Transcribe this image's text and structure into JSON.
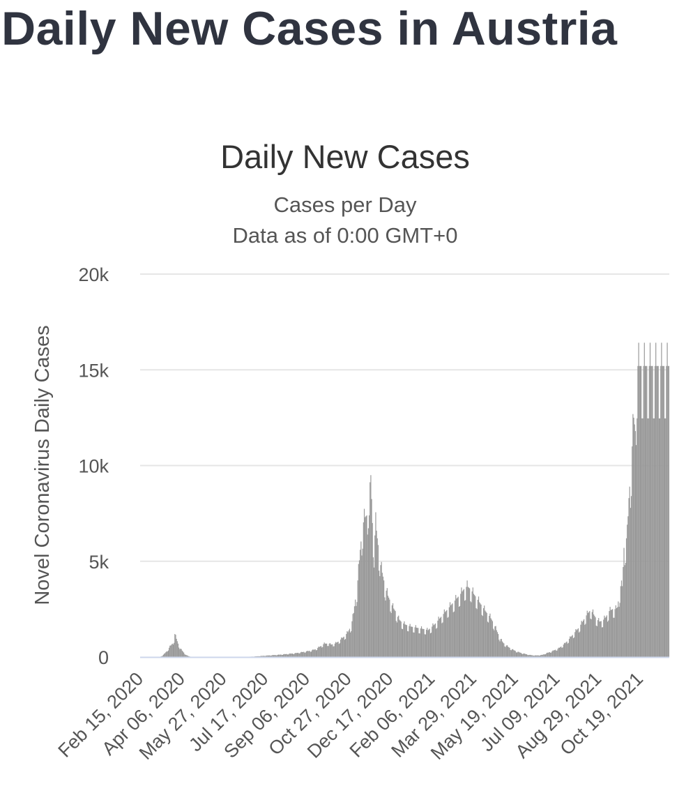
{
  "page": {
    "title": "Daily New Cases in Austria"
  },
  "colors": {
    "bar": "#999999",
    "grid": "#e6e6e6",
    "baseline": "#ccd6eb"
  },
  "chart_data": {
    "type": "bar",
    "title": "Daily New Cases",
    "subtitle_lines": [
      "Cases per Day",
      "Data as of 0:00 GMT+0"
    ],
    "ylabel": "Novel Coronavirus Daily Cases",
    "xlabel": "",
    "ylim": [
      0,
      20000
    ],
    "y_ticks": [
      {
        "value": 0,
        "label": "0"
      },
      {
        "value": 5000,
        "label": "5k"
      },
      {
        "value": 10000,
        "label": "10k"
      },
      {
        "value": 15000,
        "label": "15k"
      },
      {
        "value": 20000,
        "label": "20k"
      }
    ],
    "x_start": "2020-02-15",
    "x_end": "2021-11-23",
    "x_tick_labels": [
      {
        "day": 0,
        "label": "Feb 15, 2020"
      },
      {
        "day": 51,
        "label": "Apr 06, 2020"
      },
      {
        "day": 102,
        "label": "May 27, 2020"
      },
      {
        "day": 153,
        "label": "Jul 17, 2020"
      },
      {
        "day": 204,
        "label": "Sep 06, 2020"
      },
      {
        "day": 255,
        "label": "Oct 27, 2020"
      },
      {
        "day": 306,
        "label": "Dec 17, 2020"
      },
      {
        "day": 357,
        "label": "Feb 06, 2021"
      },
      {
        "day": 408,
        "label": "Mar 29, 2021"
      },
      {
        "day": 459,
        "label": "May 19, 2021"
      },
      {
        "day": 510,
        "label": "Jul 09, 2021"
      },
      {
        "day": 561,
        "label": "Aug 29, 2021"
      },
      {
        "day": 612,
        "label": "Oct 19, 2021"
      }
    ],
    "series": [
      {
        "name": "Daily Cases",
        "anchor_points": [
          [
            0,
            0
          ],
          [
            24,
            0
          ],
          [
            27,
            80
          ],
          [
            30,
            200
          ],
          [
            33,
            350
          ],
          [
            36,
            550
          ],
          [
            39,
            700
          ],
          [
            41,
            900
          ],
          [
            42,
            1200
          ],
          [
            44,
            950
          ],
          [
            46,
            700
          ],
          [
            48,
            500
          ],
          [
            50,
            380
          ],
          [
            52,
            280
          ],
          [
            54,
            180
          ],
          [
            56,
            100
          ],
          [
            58,
            60
          ],
          [
            60,
            30
          ],
          [
            63,
            10
          ],
          [
            72,
            0
          ],
          [
            100,
            0
          ],
          [
            120,
            0
          ],
          [
            130,
            10
          ],
          [
            140,
            30
          ],
          [
            150,
            60
          ],
          [
            160,
            90
          ],
          [
            170,
            120
          ],
          [
            180,
            160
          ],
          [
            190,
            200
          ],
          [
            200,
            270
          ],
          [
            208,
            330
          ],
          [
            214,
            400
          ],
          [
            220,
            550
          ],
          [
            225,
            700
          ],
          [
            230,
            700
          ],
          [
            234,
            650
          ],
          [
            238,
            700
          ],
          [
            242,
            800
          ],
          [
            246,
            950
          ],
          [
            250,
            1100
          ],
          [
            254,
            1300
          ],
          [
            258,
            1650
          ],
          [
            261,
            2300
          ],
          [
            263,
            3000
          ],
          [
            265,
            3500
          ],
          [
            267,
            4500
          ],
          [
            269,
            5600
          ],
          [
            272,
            6900
          ],
          [
            275,
            7300
          ],
          [
            277,
            7400
          ],
          [
            279,
            8200
          ],
          [
            280,
            7400
          ],
          [
            282,
            9500
          ],
          [
            284,
            7000
          ],
          [
            286,
            5700
          ],
          [
            288,
            7000
          ],
          [
            290,
            6200
          ],
          [
            292,
            5500
          ],
          [
            294,
            4800
          ],
          [
            296,
            4400
          ],
          [
            298,
            4000
          ],
          [
            300,
            3600
          ],
          [
            303,
            3200
          ],
          [
            306,
            2900
          ],
          [
            309,
            2600
          ],
          [
            312,
            2400
          ],
          [
            316,
            2000
          ],
          [
            320,
            1800
          ],
          [
            324,
            1700
          ],
          [
            330,
            1600
          ],
          [
            336,
            1550
          ],
          [
            342,
            1500
          ],
          [
            348,
            1450
          ],
          [
            352,
            1400
          ],
          [
            356,
            1550
          ],
          [
            360,
            1700
          ],
          [
            364,
            1900
          ],
          [
            368,
            2100
          ],
          [
            372,
            2300
          ],
          [
            376,
            2500
          ],
          [
            380,
            2700
          ],
          [
            384,
            2900
          ],
          [
            388,
            3100
          ],
          [
            392,
            3300
          ],
          [
            396,
            3550
          ],
          [
            400,
            3700
          ],
          [
            404,
            3550
          ],
          [
            408,
            3300
          ],
          [
            412,
            3050
          ],
          [
            416,
            2800
          ],
          [
            420,
            2550
          ],
          [
            424,
            2300
          ],
          [
            428,
            2100
          ],
          [
            432,
            1800
          ],
          [
            436,
            1400
          ],
          [
            440,
            1000
          ],
          [
            444,
            750
          ],
          [
            448,
            600
          ],
          [
            452,
            480
          ],
          [
            456,
            380
          ],
          [
            460,
            300
          ],
          [
            464,
            240
          ],
          [
            468,
            190
          ],
          [
            472,
            150
          ],
          [
            476,
            110
          ],
          [
            480,
            90
          ],
          [
            484,
            80
          ],
          [
            488,
            90
          ],
          [
            492,
            110
          ],
          [
            496,
            180
          ],
          [
            500,
            240
          ],
          [
            504,
            300
          ],
          [
            508,
            380
          ],
          [
            512,
            450
          ],
          [
            516,
            580
          ],
          [
            520,
            720
          ],
          [
            524,
            900
          ],
          [
            528,
            1100
          ],
          [
            532,
            1300
          ],
          [
            536,
            1500
          ],
          [
            540,
            1750
          ],
          [
            544,
            2050
          ],
          [
            548,
            2300
          ],
          [
            551,
            2450
          ],
          [
            554,
            2300
          ],
          [
            558,
            2000
          ],
          [
            562,
            1850
          ],
          [
            566,
            1900
          ],
          [
            570,
            2100
          ],
          [
            574,
            2400
          ],
          [
            578,
            2500
          ],
          [
            582,
            2500
          ],
          [
            584,
            2600
          ],
          [
            586,
            3200
          ],
          [
            588,
            3700
          ],
          [
            590,
            3700
          ],
          [
            592,
            5700
          ],
          [
            594,
            6000
          ],
          [
            596,
            6400
          ],
          [
            598,
            8300
          ],
          [
            600,
            9500
          ],
          [
            602,
            11000
          ],
          [
            604,
            12500
          ],
          [
            606,
            11800
          ],
          [
            608,
            15200
          ]
        ]
      }
    ]
  }
}
